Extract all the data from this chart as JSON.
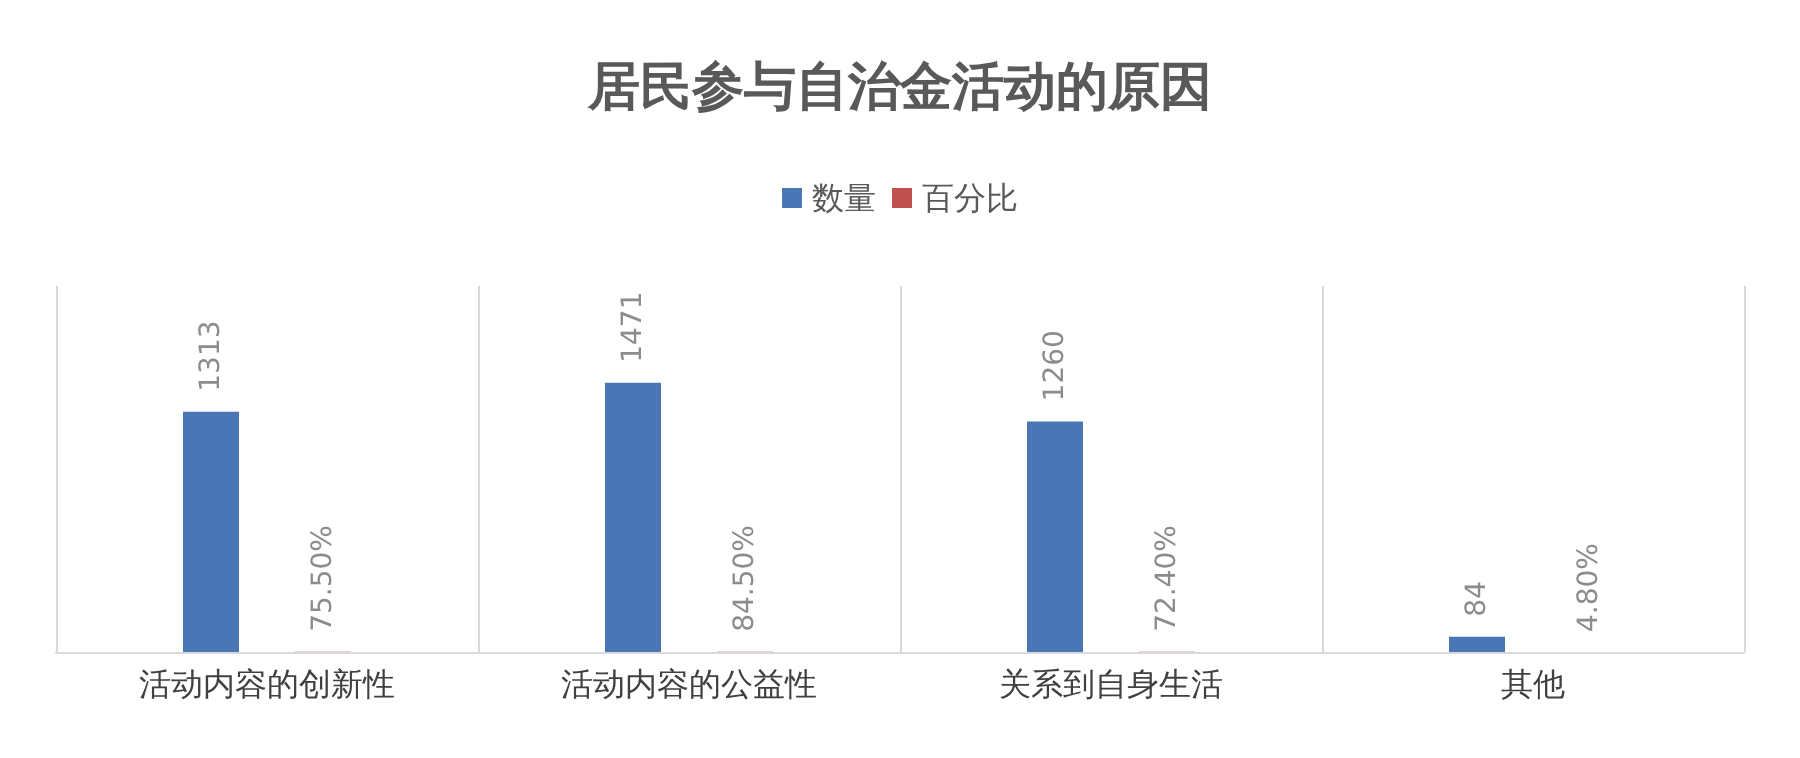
{
  "chart_data": {
    "type": "bar",
    "title": "居民参与自治金活动的原因",
    "categories": [
      "活动内容的创新性",
      "活动内容的公益性",
      "关系到自身生活",
      "其他"
    ],
    "series": [
      {
        "name": "数量",
        "color": "#4a76b5",
        "values": [
          1313,
          1471,
          1260,
          84
        ],
        "value_labels": [
          "1313",
          "1471",
          "1260",
          "84"
        ]
      },
      {
        "name": "百分比",
        "color": "#c0504d",
        "values": [
          0.755,
          0.845,
          0.724,
          0.048
        ],
        "value_labels": [
          "75.50%",
          "84.50%",
          "72.40%",
          "4.80%"
        ]
      }
    ],
    "legend": "top",
    "grid": "x",
    "tick_labels": "x"
  }
}
